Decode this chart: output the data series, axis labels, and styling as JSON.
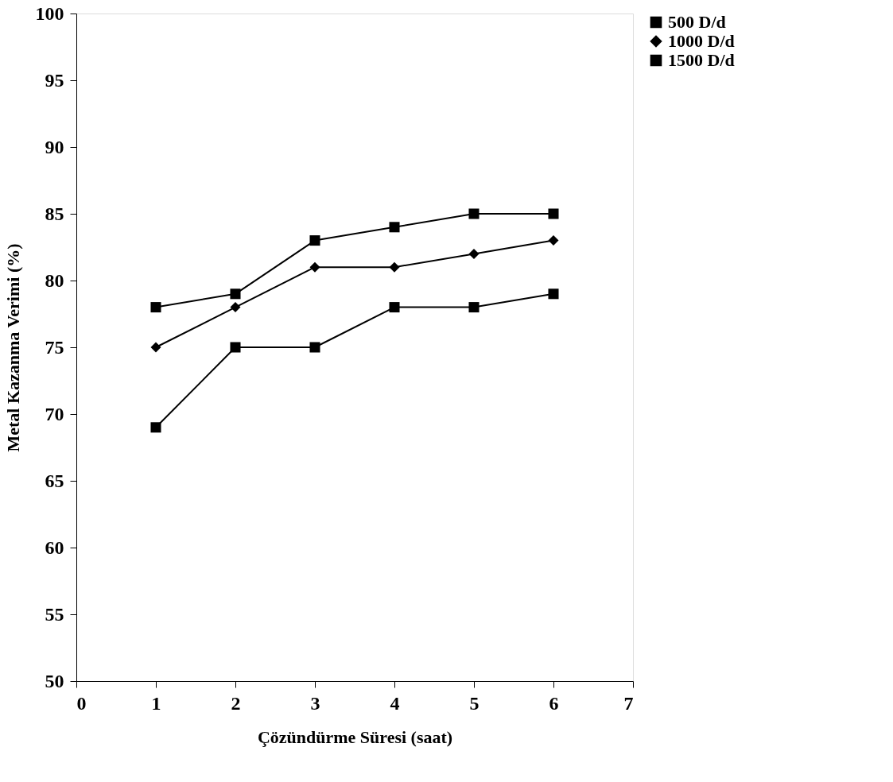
{
  "chart_data": {
    "type": "line",
    "xlabel": "Çözündürme Süresi (saat)",
    "ylabel": "Metal Kazanma Verimi (%)",
    "x": [
      1,
      2,
      3,
      4,
      5,
      6
    ],
    "series": [
      {
        "name": "500 D/d",
        "color": "#000000",
        "marker": "square",
        "values": [
          69,
          75,
          75,
          78,
          78,
          79
        ]
      },
      {
        "name": "1000 D/d",
        "color": "#000000",
        "marker": "diamond",
        "values": [
          75,
          78,
          81,
          81,
          82,
          83
        ]
      },
      {
        "name": "1500 D/d",
        "color": "#000000",
        "marker": "square",
        "values": [
          78,
          79,
          83,
          84,
          85,
          85
        ]
      }
    ],
    "xlim": [
      0,
      7
    ],
    "xticks": [
      0,
      1,
      2,
      3,
      4,
      5,
      6,
      7
    ],
    "ylim": [
      50,
      100
    ],
    "yticks": [
      50,
      55,
      60,
      65,
      70,
      75,
      80,
      85,
      90,
      95,
      100
    ],
    "grid": false,
    "legend": "top right",
    "line_style": "solid"
  }
}
